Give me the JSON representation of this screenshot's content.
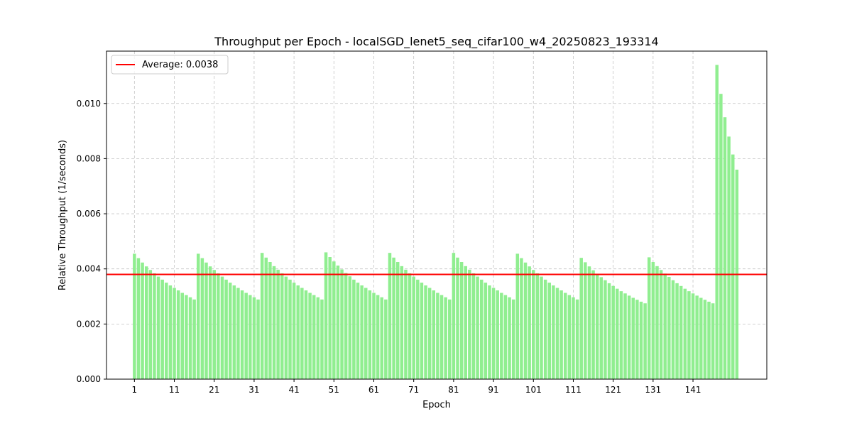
{
  "chart_data": {
    "type": "bar",
    "title": "Throughput per Epoch - localSGD_lenet5_seq_cifar100_w4_20250823_193314",
    "xlabel": "Epoch",
    "ylabel": "Relative Throughput (1/seconds)",
    "x_start": 1,
    "xticks": [
      1,
      11,
      21,
      31,
      41,
      51,
      61,
      71,
      81,
      91,
      101,
      111,
      121,
      131,
      141
    ],
    "yticks": [
      "0.000",
      "0.002",
      "0.004",
      "0.006",
      "0.008",
      "0.010"
    ],
    "ylim": [
      0,
      0.0119
    ],
    "xlim": [
      -6,
      159.5
    ],
    "grid": true,
    "bar_color": "#90ee90",
    "average_line": {
      "value": 0.0038,
      "color": "#ff0000",
      "label": "Average: 0.0038"
    },
    "legend_position": "top-left",
    "values": [
      0.00455,
      0.00439,
      0.00423,
      0.00409,
      0.00396,
      0.00384,
      0.00372,
      0.00361,
      0.0035,
      0.0034,
      0.00331,
      0.00322,
      0.00313,
      0.00305,
      0.00297,
      0.00289,
      0.00455,
      0.00439,
      0.00423,
      0.00409,
      0.00396,
      0.00384,
      0.00372,
      0.00361,
      0.0035,
      0.0034,
      0.00331,
      0.00322,
      0.00313,
      0.00305,
      0.00297,
      0.00289,
      0.00458,
      0.00441,
      0.00425,
      0.0041,
      0.00397,
      0.00384,
      0.00372,
      0.00361,
      0.0035,
      0.0034,
      0.00331,
      0.00322,
      0.00313,
      0.00305,
      0.00297,
      0.00289,
      0.0046,
      0.00443,
      0.00427,
      0.00412,
      0.00398,
      0.00385,
      0.00373,
      0.00361,
      0.0035,
      0.0034,
      0.00331,
      0.00322,
      0.00313,
      0.00305,
      0.00297,
      0.00289,
      0.00458,
      0.00441,
      0.00425,
      0.0041,
      0.00397,
      0.00384,
      0.00372,
      0.00361,
      0.0035,
      0.0034,
      0.00331,
      0.00322,
      0.00313,
      0.00305,
      0.00297,
      0.00289,
      0.00458,
      0.00441,
      0.00425,
      0.0041,
      0.00397,
      0.00384,
      0.00372,
      0.00361,
      0.0035,
      0.0034,
      0.00331,
      0.00322,
      0.00313,
      0.00305,
      0.00297,
      0.00289,
      0.00455,
      0.00439,
      0.00423,
      0.00409,
      0.00396,
      0.00384,
      0.00372,
      0.00361,
      0.0035,
      0.0034,
      0.00331,
      0.00322,
      0.00313,
      0.00305,
      0.00297,
      0.00289,
      0.0044,
      0.00424,
      0.00409,
      0.00395,
      0.00382,
      0.0037,
      0.00359,
      0.00348,
      0.00338,
      0.00328,
      0.00319,
      0.00311,
      0.00303,
      0.00295,
      0.00288,
      0.00281,
      0.00275,
      0.00442,
      0.00425,
      0.0041,
      0.00396,
      0.00383,
      0.00371,
      0.00359,
      0.00348,
      0.00338,
      0.00328,
      0.00319,
      0.00311,
      0.00303,
      0.00295,
      0.00288,
      0.00281,
      0.00275,
      0.0114,
      0.01035,
      0.0095,
      0.0088,
      0.00815,
      0.0076
    ]
  }
}
